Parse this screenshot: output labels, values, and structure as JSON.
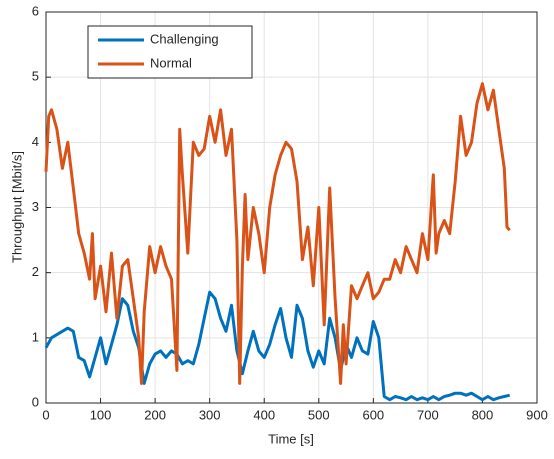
{
  "chart_data": {
    "type": "line",
    "xlabel": "Time [s]",
    "ylabel": "Throughput [Mbit/s]",
    "xlim": [
      0,
      900
    ],
    "ylim": [
      0,
      6
    ],
    "xticks": [
      0,
      100,
      200,
      300,
      400,
      500,
      600,
      700,
      800,
      900
    ],
    "yticks": [
      0,
      1,
      2,
      3,
      4,
      5,
      6
    ],
    "grid": true,
    "legend": "upper left",
    "series": [
      {
        "name": "Challenging",
        "color": "#0072BD",
        "x": [
          0,
          10,
          20,
          30,
          40,
          50,
          60,
          70,
          80,
          90,
          100,
          110,
          120,
          130,
          140,
          150,
          160,
          170,
          180,
          190,
          200,
          210,
          220,
          230,
          240,
          250,
          260,
          270,
          280,
          290,
          300,
          310,
          320,
          330,
          340,
          350,
          360,
          370,
          380,
          390,
          400,
          410,
          420,
          430,
          440,
          450,
          460,
          470,
          480,
          490,
          500,
          510,
          520,
          530,
          540,
          550,
          560,
          570,
          580,
          590,
          600,
          610,
          620,
          630,
          640,
          650,
          660,
          670,
          680,
          690,
          700,
          710,
          720,
          730,
          740,
          750,
          760,
          770,
          780,
          790,
          800,
          810,
          820,
          830,
          840,
          850
        ],
        "values": [
          0.85,
          1.0,
          1.05,
          1.1,
          1.15,
          1.1,
          0.7,
          0.65,
          0.4,
          0.7,
          1.0,
          0.6,
          0.9,
          1.2,
          1.6,
          1.5,
          1.1,
          0.85,
          0.3,
          0.6,
          0.75,
          0.8,
          0.7,
          0.8,
          0.75,
          0.6,
          0.65,
          0.6,
          0.9,
          1.3,
          1.7,
          1.6,
          1.3,
          1.1,
          1.5,
          0.8,
          0.45,
          0.8,
          1.1,
          0.8,
          0.7,
          0.9,
          1.2,
          1.45,
          1.0,
          0.7,
          1.5,
          1.3,
          0.8,
          0.55,
          0.8,
          0.6,
          1.3,
          1.0,
          0.5,
          0.9,
          0.7,
          1.0,
          0.8,
          0.75,
          1.25,
          1.0,
          0.1,
          0.05,
          0.1,
          0.08,
          0.05,
          0.1,
          0.05,
          0.08,
          0.05,
          0.1,
          0.05,
          0.1,
          0.12,
          0.15,
          0.15,
          0.12,
          0.15,
          0.1,
          0.05,
          0.1,
          0.05,
          0.08,
          0.1,
          0.12
        ]
      },
      {
        "name": "Normal",
        "color": "#D95319",
        "x": [
          0,
          5,
          10,
          20,
          30,
          40,
          50,
          60,
          70,
          80,
          85,
          90,
          100,
          110,
          120,
          130,
          140,
          150,
          160,
          170,
          175,
          180,
          190,
          200,
          210,
          220,
          230,
          240,
          245,
          250,
          260,
          270,
          280,
          290,
          300,
          310,
          320,
          330,
          340,
          350,
          355,
          360,
          365,
          370,
          380,
          390,
          400,
          410,
          420,
          430,
          440,
          450,
          460,
          470,
          480,
          490,
          500,
          510,
          520,
          530,
          540,
          545,
          550,
          560,
          570,
          580,
          590,
          600,
          610,
          620,
          630,
          640,
          650,
          660,
          670,
          680,
          690,
          700,
          710,
          715,
          720,
          730,
          740,
          750,
          760,
          770,
          780,
          790,
          800,
          810,
          820,
          830,
          840,
          845,
          850
        ],
        "values": [
          3.55,
          4.4,
          4.5,
          4.2,
          3.6,
          4.0,
          3.3,
          2.6,
          2.3,
          1.9,
          2.6,
          1.6,
          2.1,
          1.4,
          2.3,
          1.3,
          2.1,
          2.2,
          1.6,
          1.0,
          0.3,
          1.4,
          2.4,
          2.0,
          2.4,
          2.1,
          1.9,
          0.5,
          4.2,
          3.5,
          2.3,
          4.0,
          3.8,
          3.9,
          4.4,
          4.0,
          4.5,
          3.8,
          4.2,
          2.5,
          0.3,
          2.1,
          3.2,
          2.2,
          3.0,
          2.6,
          2.0,
          3.0,
          3.5,
          3.8,
          4.0,
          3.9,
          3.4,
          2.2,
          2.7,
          1.8,
          3.0,
          1.2,
          3.3,
          1.6,
          0.3,
          1.2,
          0.6,
          1.8,
          1.6,
          1.8,
          2.0,
          1.6,
          1.7,
          1.9,
          1.9,
          2.2,
          2.0,
          2.4,
          2.2,
          2.0,
          2.6,
          2.2,
          3.5,
          2.3,
          2.6,
          2.8,
          2.6,
          3.4,
          4.4,
          3.8,
          4.0,
          4.6,
          4.9,
          4.5,
          4.8,
          4.2,
          3.6,
          2.7,
          2.65
        ]
      }
    ]
  }
}
